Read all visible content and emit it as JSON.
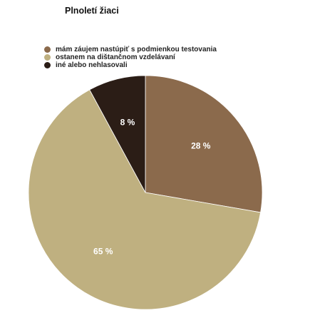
{
  "chart_data": {
    "type": "pie",
    "title": "Plnoletí žiaci",
    "legend_position": "top-left",
    "slices": [
      {
        "name": "mám záujem nastúpiť s podmienkou testovania",
        "value": 28,
        "label": "28 %",
        "color": "#8b6a4c"
      },
      {
        "name": "ostanem na dištančnom vzdelávaní",
        "value": 65,
        "label": "65 %",
        "color": "#bfb080"
      },
      {
        "name": "iné alebo nehlasovali",
        "value": 8,
        "label": "8 %",
        "color": "#2b1d16"
      }
    ]
  }
}
